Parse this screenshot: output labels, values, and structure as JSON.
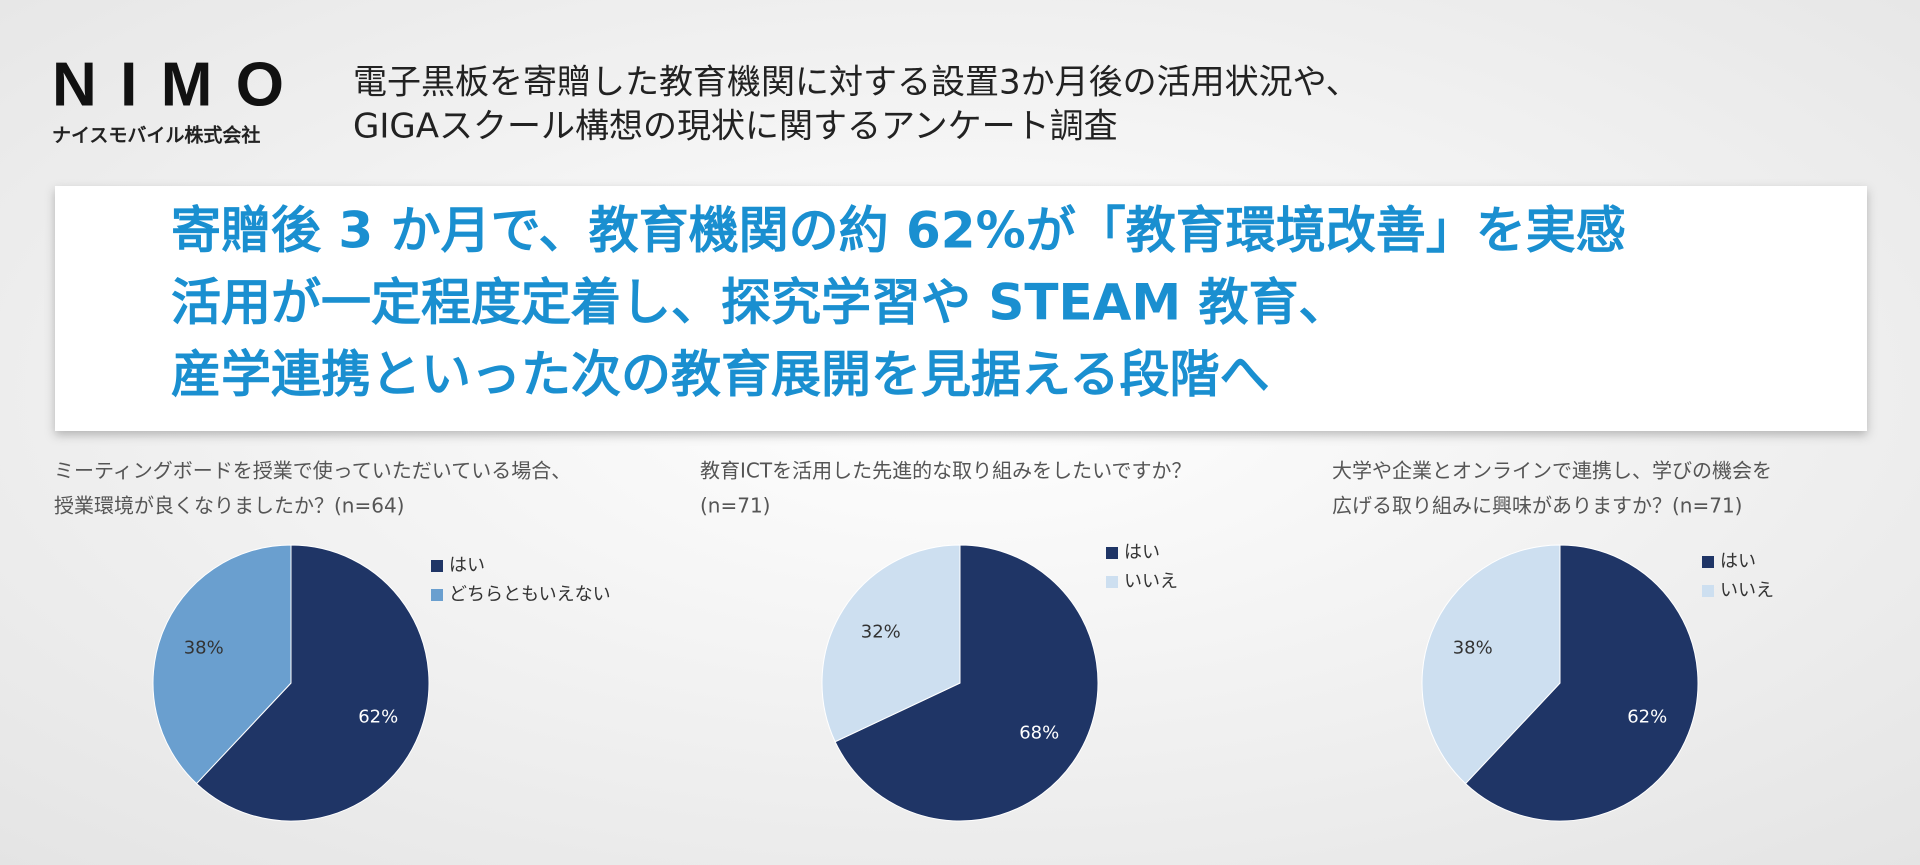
{
  "header": {
    "logo": "NIMO",
    "company": "ナイスモバイル株式会社",
    "title": [
      "電子黒板を寄贈した教育機関に対する設置3か月後の活用状況や、",
      "GIGAスクール構想の現状に関するアンケート調査"
    ]
  },
  "headline": [
    "寄贈後 3 か月で、教育機関の約 62%が「教育環境改善」を実感",
    "活用が一定程度定着し、探究学習や STEAM 教育、",
    "産学連携といった次の教育展開を見据える段階へ"
  ],
  "chart_data": [
    {
      "type": "pie",
      "title": [
        "ミーティングボードを授業で使っていただいている場合、",
        "授業環境が良くなりましたか？(n=64)"
      ],
      "categories": [
        "はい",
        "どちらともいえない"
      ],
      "values": [
        62,
        38
      ],
      "value_labels": [
        "62%",
        "38%"
      ],
      "colors": [
        "#1f3566",
        "#6a9fcf"
      ]
    },
    {
      "type": "pie",
      "title": [
        "教育ICTを活用した先進的な取り組みをしたいですか？",
        " (n=71)"
      ],
      "categories": [
        "はい",
        "いいえ"
      ],
      "values": [
        68,
        32
      ],
      "value_labels": [
        "68%",
        "32%"
      ],
      "colors": [
        "#1f3566",
        "#cddff0"
      ]
    },
    {
      "type": "pie",
      "title": [
        "大学や企業とオンラインで連携し、学びの機会を",
        "広げる取り組みに興味がありますか？(n=71)"
      ],
      "categories": [
        "はい",
        "いいえ"
      ],
      "values": [
        62,
        38
      ],
      "value_labels": [
        "62%",
        "38%"
      ],
      "colors": [
        "#1f3566",
        "#cddff0"
      ]
    }
  ]
}
